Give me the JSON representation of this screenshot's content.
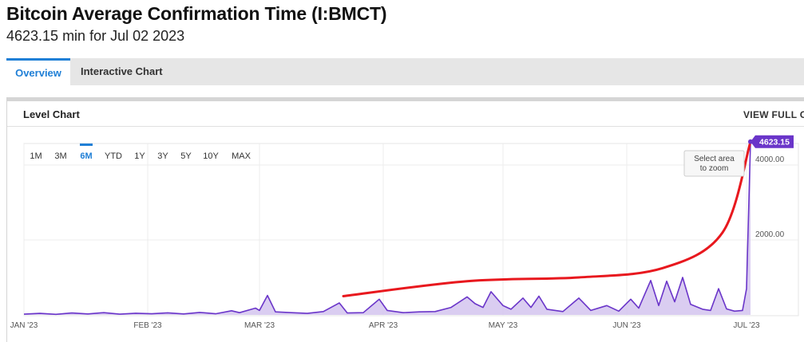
{
  "header": {
    "title": "Bitcoin Average Confirmation Time (I:BMCT)",
    "subtitle": "4623.15 min for Jul 02 2023"
  },
  "tabs": [
    {
      "label": "Overview",
      "active": true
    },
    {
      "label": "Interactive Chart",
      "active": false
    }
  ],
  "card": {
    "title": "Level Chart",
    "view_full_label": "VIEW FULL CH"
  },
  "chart_controls": {
    "ranges": [
      "1M",
      "3M",
      "6M",
      "YTD",
      "1Y",
      "3Y",
      "5Y",
      "10Y",
      "MAX"
    ],
    "active_range": "6M",
    "zoom_hint_line1": "Select area",
    "zoom_hint_line2": "to zoom"
  },
  "colors": {
    "series_line": "#6a35c9",
    "series_fill": "#d6c8ef",
    "annotation": "#e8181e",
    "accent": "#1f7fd6",
    "last_value_badge": "#6a35c9"
  },
  "chart_data": {
    "type": "area",
    "title": "",
    "xlabel": "",
    "ylabel": "",
    "xlim": [
      "2023-01-01",
      "2023-07-02"
    ],
    "ylim": [
      0,
      5000
    ],
    "x_tick_labels": [
      "JAN '23",
      "FEB '23",
      "MAR '23",
      "APR '23",
      "MAY '23",
      "JUN '23",
      "JUL '23"
    ],
    "x_tick_dates": [
      "2023-01-01",
      "2023-02-01",
      "2023-03-01",
      "2023-04-01",
      "2023-05-01",
      "2023-06-01",
      "2023-07-01"
    ],
    "y_tick_labels": [
      "2000.00",
      "4000.00"
    ],
    "y_tick_values": [
      2000,
      4000
    ],
    "grid": true,
    "last_value_label": "4623.15",
    "series": [
      {
        "points": [
          [
            "2023-01-01",
            20
          ],
          [
            "2023-01-05",
            40
          ],
          [
            "2023-01-09",
            15
          ],
          [
            "2023-01-13",
            50
          ],
          [
            "2023-01-17",
            25
          ],
          [
            "2023-01-21",
            60
          ],
          [
            "2023-01-25",
            20
          ],
          [
            "2023-01-29",
            45
          ],
          [
            "2023-02-02",
            30
          ],
          [
            "2023-02-06",
            55
          ],
          [
            "2023-02-10",
            25
          ],
          [
            "2023-02-14",
            65
          ],
          [
            "2023-02-18",
            30
          ],
          [
            "2023-02-22",
            110
          ],
          [
            "2023-02-24",
            60
          ],
          [
            "2023-02-28",
            180
          ],
          [
            "2023-03-01",
            120
          ],
          [
            "2023-03-03",
            520
          ],
          [
            "2023-03-05",
            80
          ],
          [
            "2023-03-09",
            60
          ],
          [
            "2023-03-13",
            40
          ],
          [
            "2023-03-17",
            90
          ],
          [
            "2023-03-21",
            320
          ],
          [
            "2023-03-23",
            50
          ],
          [
            "2023-03-27",
            60
          ],
          [
            "2023-03-31",
            420
          ],
          [
            "2023-04-02",
            120
          ],
          [
            "2023-04-06",
            60
          ],
          [
            "2023-04-10",
            80
          ],
          [
            "2023-04-14",
            90
          ],
          [
            "2023-04-18",
            200
          ],
          [
            "2023-04-22",
            480
          ],
          [
            "2023-04-24",
            300
          ],
          [
            "2023-04-26",
            200
          ],
          [
            "2023-04-28",
            620
          ],
          [
            "2023-05-01",
            250
          ],
          [
            "2023-05-03",
            150
          ],
          [
            "2023-05-06",
            450
          ],
          [
            "2023-05-08",
            200
          ],
          [
            "2023-05-10",
            500
          ],
          [
            "2023-05-12",
            150
          ],
          [
            "2023-05-16",
            90
          ],
          [
            "2023-05-20",
            450
          ],
          [
            "2023-05-23",
            120
          ],
          [
            "2023-05-27",
            250
          ],
          [
            "2023-05-30",
            100
          ],
          [
            "2023-06-02",
            420
          ],
          [
            "2023-06-04",
            180
          ],
          [
            "2023-06-07",
            920
          ],
          [
            "2023-06-09",
            250
          ],
          [
            "2023-06-11",
            900
          ],
          [
            "2023-06-13",
            350
          ],
          [
            "2023-06-15",
            1000
          ],
          [
            "2023-06-17",
            280
          ],
          [
            "2023-06-20",
            150
          ],
          [
            "2023-06-22",
            120
          ],
          [
            "2023-06-24",
            700
          ],
          [
            "2023-06-26",
            160
          ],
          [
            "2023-06-28",
            100
          ],
          [
            "2023-06-30",
            120
          ],
          [
            "2023-07-01",
            700
          ],
          [
            "2023-07-02",
            4623.15
          ]
        ]
      }
    ],
    "annotations": [
      {
        "type": "trend-curve",
        "points": [
          [
            "2023-03-22",
            500
          ],
          [
            "2023-04-22",
            900
          ],
          [
            "2023-05-20",
            1000
          ],
          [
            "2023-06-10",
            1250
          ],
          [
            "2023-06-25",
            2200
          ],
          [
            "2023-07-02",
            4623.15
          ]
        ]
      }
    ]
  }
}
